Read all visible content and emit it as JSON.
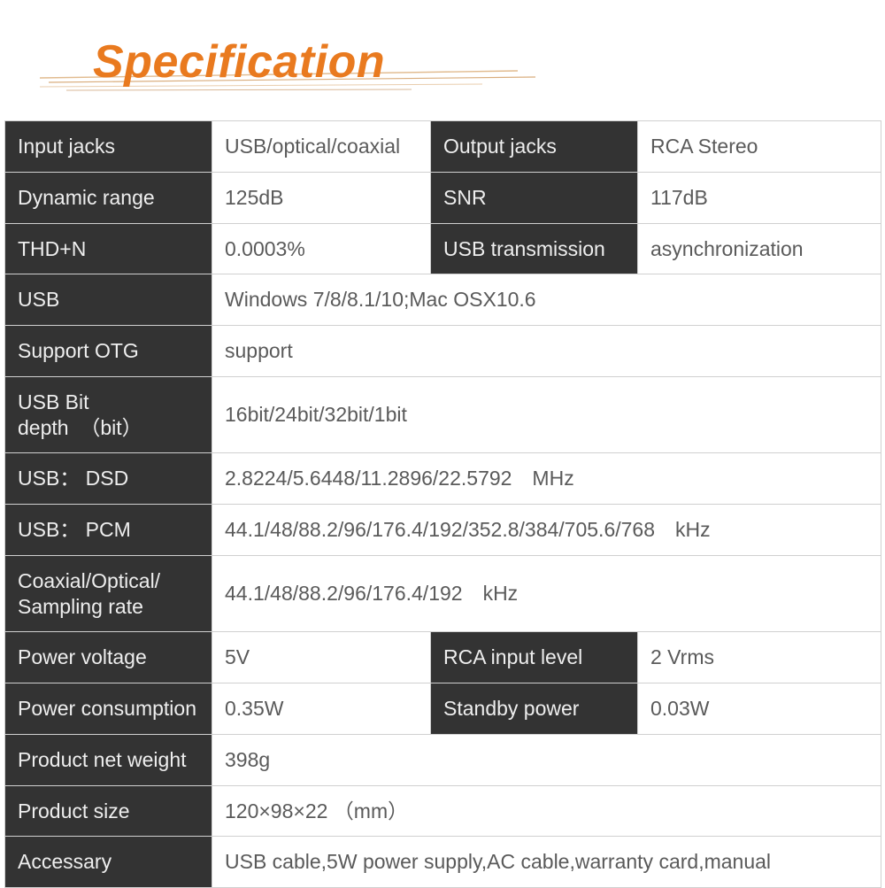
{
  "title": "Specification",
  "colors": {
    "accent": "#E97A1F",
    "header_bg": "#333333",
    "header_text": "#EEEEEE",
    "value_text": "#5a5a5a",
    "border": "#D0D0D0",
    "background": "#ffffff"
  },
  "rows": [
    {
      "label1": "Input jacks",
      "value1": "USB/optical/coaxial",
      "label2": "Output jacks",
      "value2": "RCA Stereo"
    },
    {
      "label1": "Dynamic range",
      "value1": "125dB",
      "label2": "SNR",
      "value2": "117dB"
    },
    {
      "label1": "THD+N",
      "value1": "0.0003%",
      "label2": "USB transmission",
      "value2": "asynchronization"
    },
    {
      "label1": "USB",
      "value1": "Windows 7/8/8.1/10;Mac OSX10.6"
    },
    {
      "label1": "Support OTG",
      "value1": "support"
    },
    {
      "label1": "USB Bit depth  （bit）",
      "value1": "16bit/24bit/32bit/1bit"
    },
    {
      "label1": "USB： DSD",
      "value1": "2.8224/5.6448/11.2896/22.5792 MHz"
    },
    {
      "label1": "USB： PCM",
      "value1": "44.1/48/88.2/96/176.4/192/352.8/384/705.6/768 kHz"
    },
    {
      "label1": "Coaxial/Optical/ Sampling rate",
      "value1": "44.1/48/88.2/96/176.4/192 kHz"
    },
    {
      "label1": "Power voltage",
      "value1": "5V",
      "label2": "RCA input level",
      "value2": "2 Vrms"
    },
    {
      "label1": "Power consumption",
      "value1": "0.35W",
      "label2": "Standby power",
      "value2": "0.03W"
    },
    {
      "label1": "Product net weight",
      "value1": "398g"
    },
    {
      "label1": "Product size",
      "value1": "120×98×22 （mm）"
    },
    {
      "label1": "Accessary",
      "value1": "USB cable,5W power supply,AC cable,warranty card,manual"
    }
  ]
}
